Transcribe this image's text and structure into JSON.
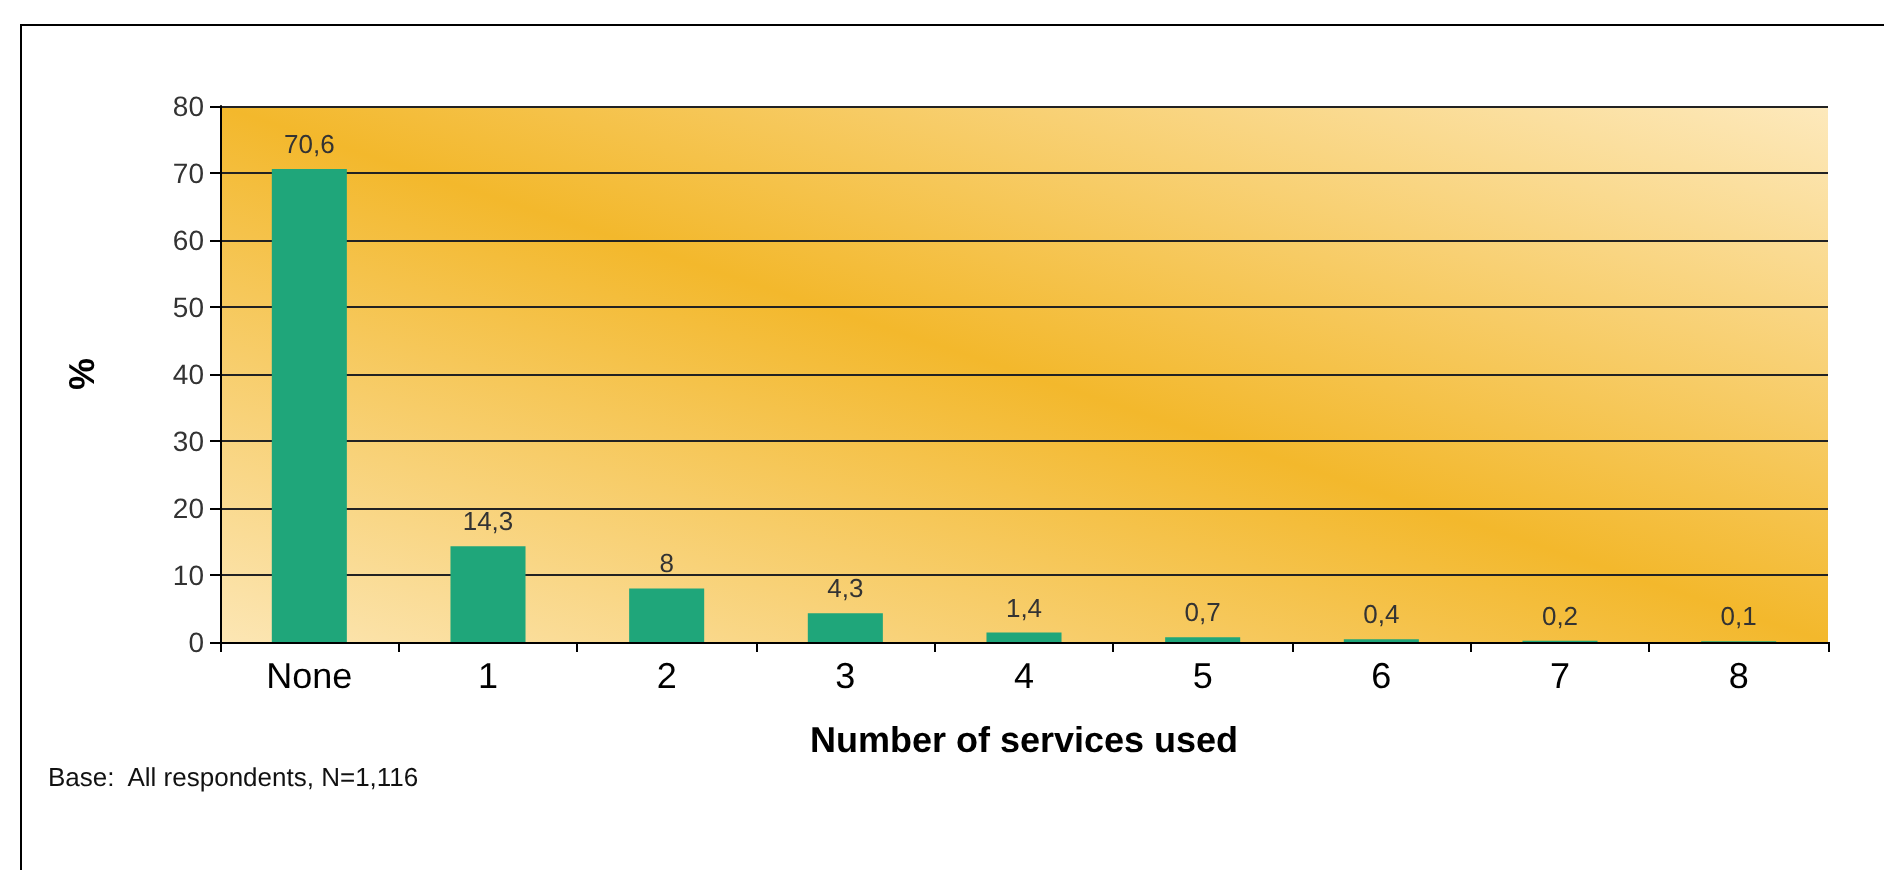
{
  "chart_data": {
    "type": "bar",
    "xlabel": "Number of services used",
    "ylabel": "%",
    "categories": [
      "None",
      "1",
      "2",
      "3",
      "4",
      "5",
      "6",
      "7",
      "8"
    ],
    "values": [
      70.6,
      14.3,
      8,
      4.3,
      1.4,
      0.7,
      0.4,
      0.2,
      0.1
    ],
    "value_labels": [
      "70,6",
      "14,3",
      "8",
      "4,3",
      "1,4",
      "0,7",
      "0,4",
      "0,2",
      "0,1"
    ],
    "color": "#1fa67a",
    "ylim": [
      0,
      80
    ],
    "yticks": [
      0,
      10,
      20,
      30,
      40,
      50,
      60,
      70,
      80
    ],
    "grid": "y",
    "annotations": [
      "Base:  All respondents, N=1,116"
    ]
  }
}
